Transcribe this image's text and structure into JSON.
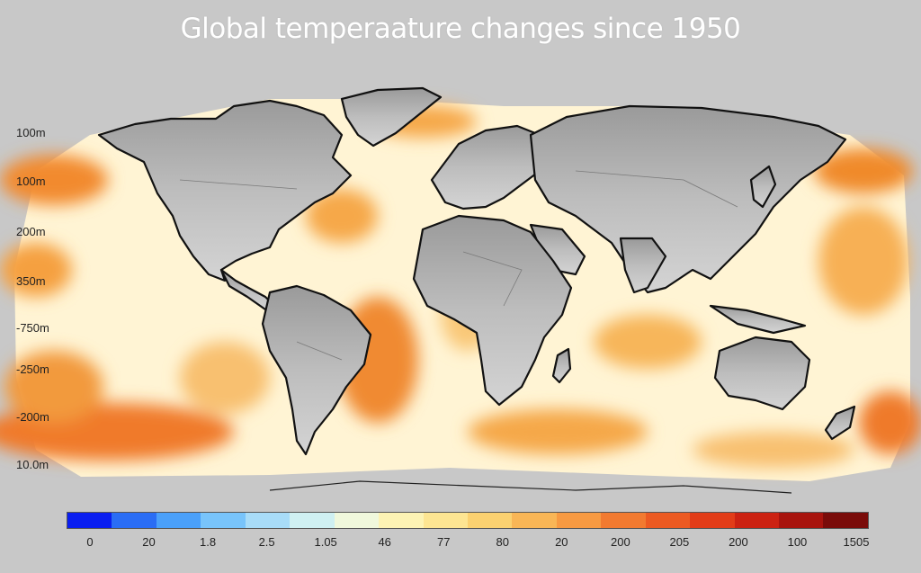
{
  "title": "Global temperaature changes since 1950",
  "y_labels": [
    "100m",
    "100m",
    "200m",
    "350m",
    "-750m",
    "-250m",
    "-200m",
    "10.0m"
  ],
  "legend": {
    "colors": [
      "#0a1ef0",
      "#2a6df5",
      "#4aa0fa",
      "#78c4fb",
      "#a8dcf8",
      "#cff0f2",
      "#f0f8dc",
      "#fdf3b4",
      "#fde592",
      "#fbd170",
      "#f9b656",
      "#f79a42",
      "#f27a30",
      "#ec5a22",
      "#e23c18",
      "#cc2212",
      "#a8140e",
      "#7a0c0a"
    ],
    "ticks": [
      "0",
      "20",
      "1.8",
      "2.5",
      "1.05",
      "46",
      "77",
      "80",
      "20",
      "200",
      "205",
      "200",
      "100",
      "1505"
    ]
  },
  "colors": {
    "background": "#c8c8c8",
    "land": "#b8b8b8",
    "ocean_light": "#fff5d8",
    "ocean_mid": "#fbc97a",
    "ocean_hot": "#f08a2c"
  }
}
